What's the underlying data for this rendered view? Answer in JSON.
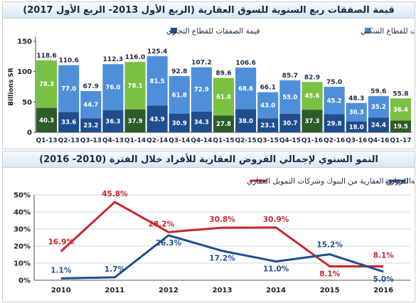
{
  "chart_data": [
    {
      "type": "bar",
      "title": "قيمة الصفقات ربع السنوية للسوق العقارية (الربع الأول 2013- الربع الأول 2017)",
      "ylabel": "Billions SR",
      "ylim": [
        0,
        150
      ],
      "yticks": [
        0,
        50,
        100,
        150
      ],
      "categories": [
        "Q1-13",
        "Q2-13",
        "Q3-13",
        "Q4-13",
        "Q1-14",
        "Q2-14",
        "Q3-14",
        "Q4-14",
        "Q1-15",
        "Q2-15",
        "Q3-15",
        "Q4-15",
        "Q1-16",
        "Q2-16",
        "Q3-16",
        "Q4-16",
        "Q1-17"
      ],
      "totals": [
        118.6,
        110.6,
        67.9,
        112.3,
        116.0,
        125.4,
        92.8,
        107.2,
        89.6,
        106.6,
        66.1,
        85.7,
        82.9,
        75.0,
        48.3,
        59.6,
        55.8
      ],
      "q1_highlight": [
        true,
        false,
        false,
        false,
        true,
        false,
        false,
        false,
        true,
        false,
        false,
        false,
        true,
        false,
        false,
        false,
        true
      ],
      "series": [
        {
          "name": "قيمة الصفقات للقطاع التجاري",
          "values": [
            40.3,
            33.6,
            23.2,
            36.3,
            37.9,
            43.9,
            30.9,
            34.3,
            27.8,
            38.0,
            23.1,
            30.7,
            37.3,
            29.8,
            18.0,
            24.4,
            19.5
          ]
        },
        {
          "name": "قيمة الصفقات للقطاع السكني",
          "values": [
            78.3,
            77.0,
            44.7,
            76.0,
            78.1,
            81.5,
            61.8,
            72.9,
            61.8,
            68.6,
            43.0,
            55.0,
            45.6,
            45.2,
            30.3,
            35.2,
            36.4
          ]
        }
      ],
      "colors": {
        "commercial": "#1f4e8f",
        "residential": "#4f8fd9",
        "commercial_q1": "#2f5a2a",
        "residential_q1": "#7ac143",
        "legend_commercial": "#1f4e8f",
        "legend_residential": "#4f8fd9"
      },
      "legend_position": "top"
    },
    {
      "type": "line",
      "title": "النمو السنوي لإجمالي القروض العقارية للأفراد خلال الفترة (2010- 2016)",
      "categories": [
        "2010",
        "2011",
        "2012",
        "2013",
        "2014",
        "2015",
        "2016"
      ],
      "ylim": [
        0,
        50
      ],
      "yticks": [
        "0%",
        "10%",
        "20%",
        "30%",
        "40%",
        "50%"
      ],
      "grid": true,
      "series": [
        {
          "name": "القروض العقارية من البنوك وشركات التمويل العقاري",
          "values": [
            16.9,
            45.8,
            28.2,
            30.8,
            30.9,
            8.1,
            8.1
          ],
          "labels": [
            "16.9%",
            "45.8%",
            "28.2%",
            "30.8%",
            "30.9%",
            "8.1%",
            "8.1%"
          ],
          "color": "#c8262d"
        },
        {
          "name": "قروض صندوق التنمية العقارية",
          "values": [
            1.1,
            1.7,
            26.3,
            17.2,
            11.0,
            15.2,
            5.0
          ],
          "labels": [
            "1.1%",
            "1.7%",
            "26.3%",
            "17.2%",
            "11.0%",
            "15.2%",
            "5.0%"
          ],
          "color": "#1f4e8f"
        }
      ],
      "legend_position": "top"
    }
  ]
}
